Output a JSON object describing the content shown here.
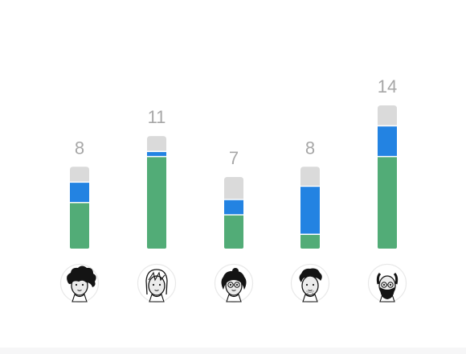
{
  "chart_data": {
    "type": "bar",
    "stacked": true,
    "categories": [
      "member-1",
      "member-2",
      "member-3",
      "member-4",
      "member-5"
    ],
    "category_display": "avatars",
    "totals": [
      8,
      11,
      7,
      8,
      14
    ],
    "series": [
      {
        "values": [
          4.5,
          9.0,
          3.3,
          1.4,
          9.0
        ],
        "color": "#52ac77"
      },
      {
        "values": [
          2.0,
          0.5,
          1.5,
          4.7,
          3.0
        ],
        "color": "#2383e2"
      },
      {
        "values": [
          1.5,
          1.5,
          2.2,
          1.9,
          2.0
        ],
        "color": "#dadada"
      }
    ],
    "ylim": [
      0,
      14
    ],
    "grid": false,
    "legend": "none"
  },
  "avatars": [
    {
      "icon": "curly-hair-person-icon"
    },
    {
      "icon": "long-hair-person-icon"
    },
    {
      "icon": "glasses-person-icon"
    },
    {
      "icon": "stubble-person-icon"
    },
    {
      "icon": "bearded-glasses-person-icon"
    }
  ],
  "colors": {
    "label": "#a7a7a7",
    "avatar_ring": "#e8e8e8"
  }
}
